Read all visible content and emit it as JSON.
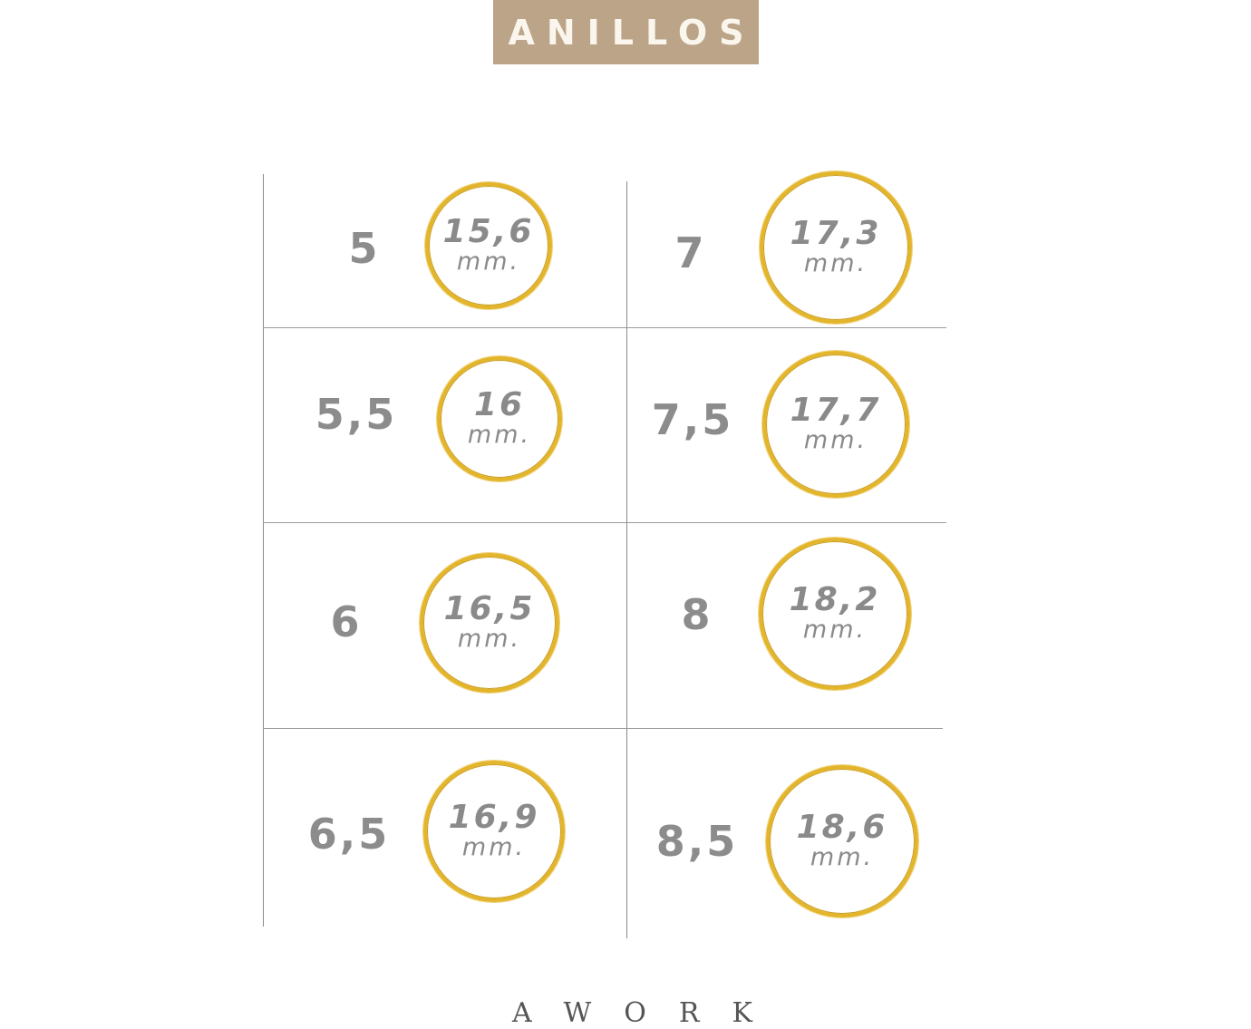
{
  "title": "ANILLOS",
  "unit": "mm.",
  "ring_color": "#e3b52b",
  "banner_color": "#bba487",
  "sizes": [
    {
      "size": "5",
      "diameter": "15,6"
    },
    {
      "size": "5,5",
      "diameter": "16"
    },
    {
      "size": "6",
      "diameter": "16,5"
    },
    {
      "size": "6,5",
      "diameter": "16,9"
    },
    {
      "size": "7",
      "diameter": "17,3"
    },
    {
      "size": "7,5",
      "diameter": "17,7"
    },
    {
      "size": "8",
      "diameter": "18,2"
    },
    {
      "size": "8,5",
      "diameter": "18,6"
    }
  ],
  "footer": "AWORK"
}
